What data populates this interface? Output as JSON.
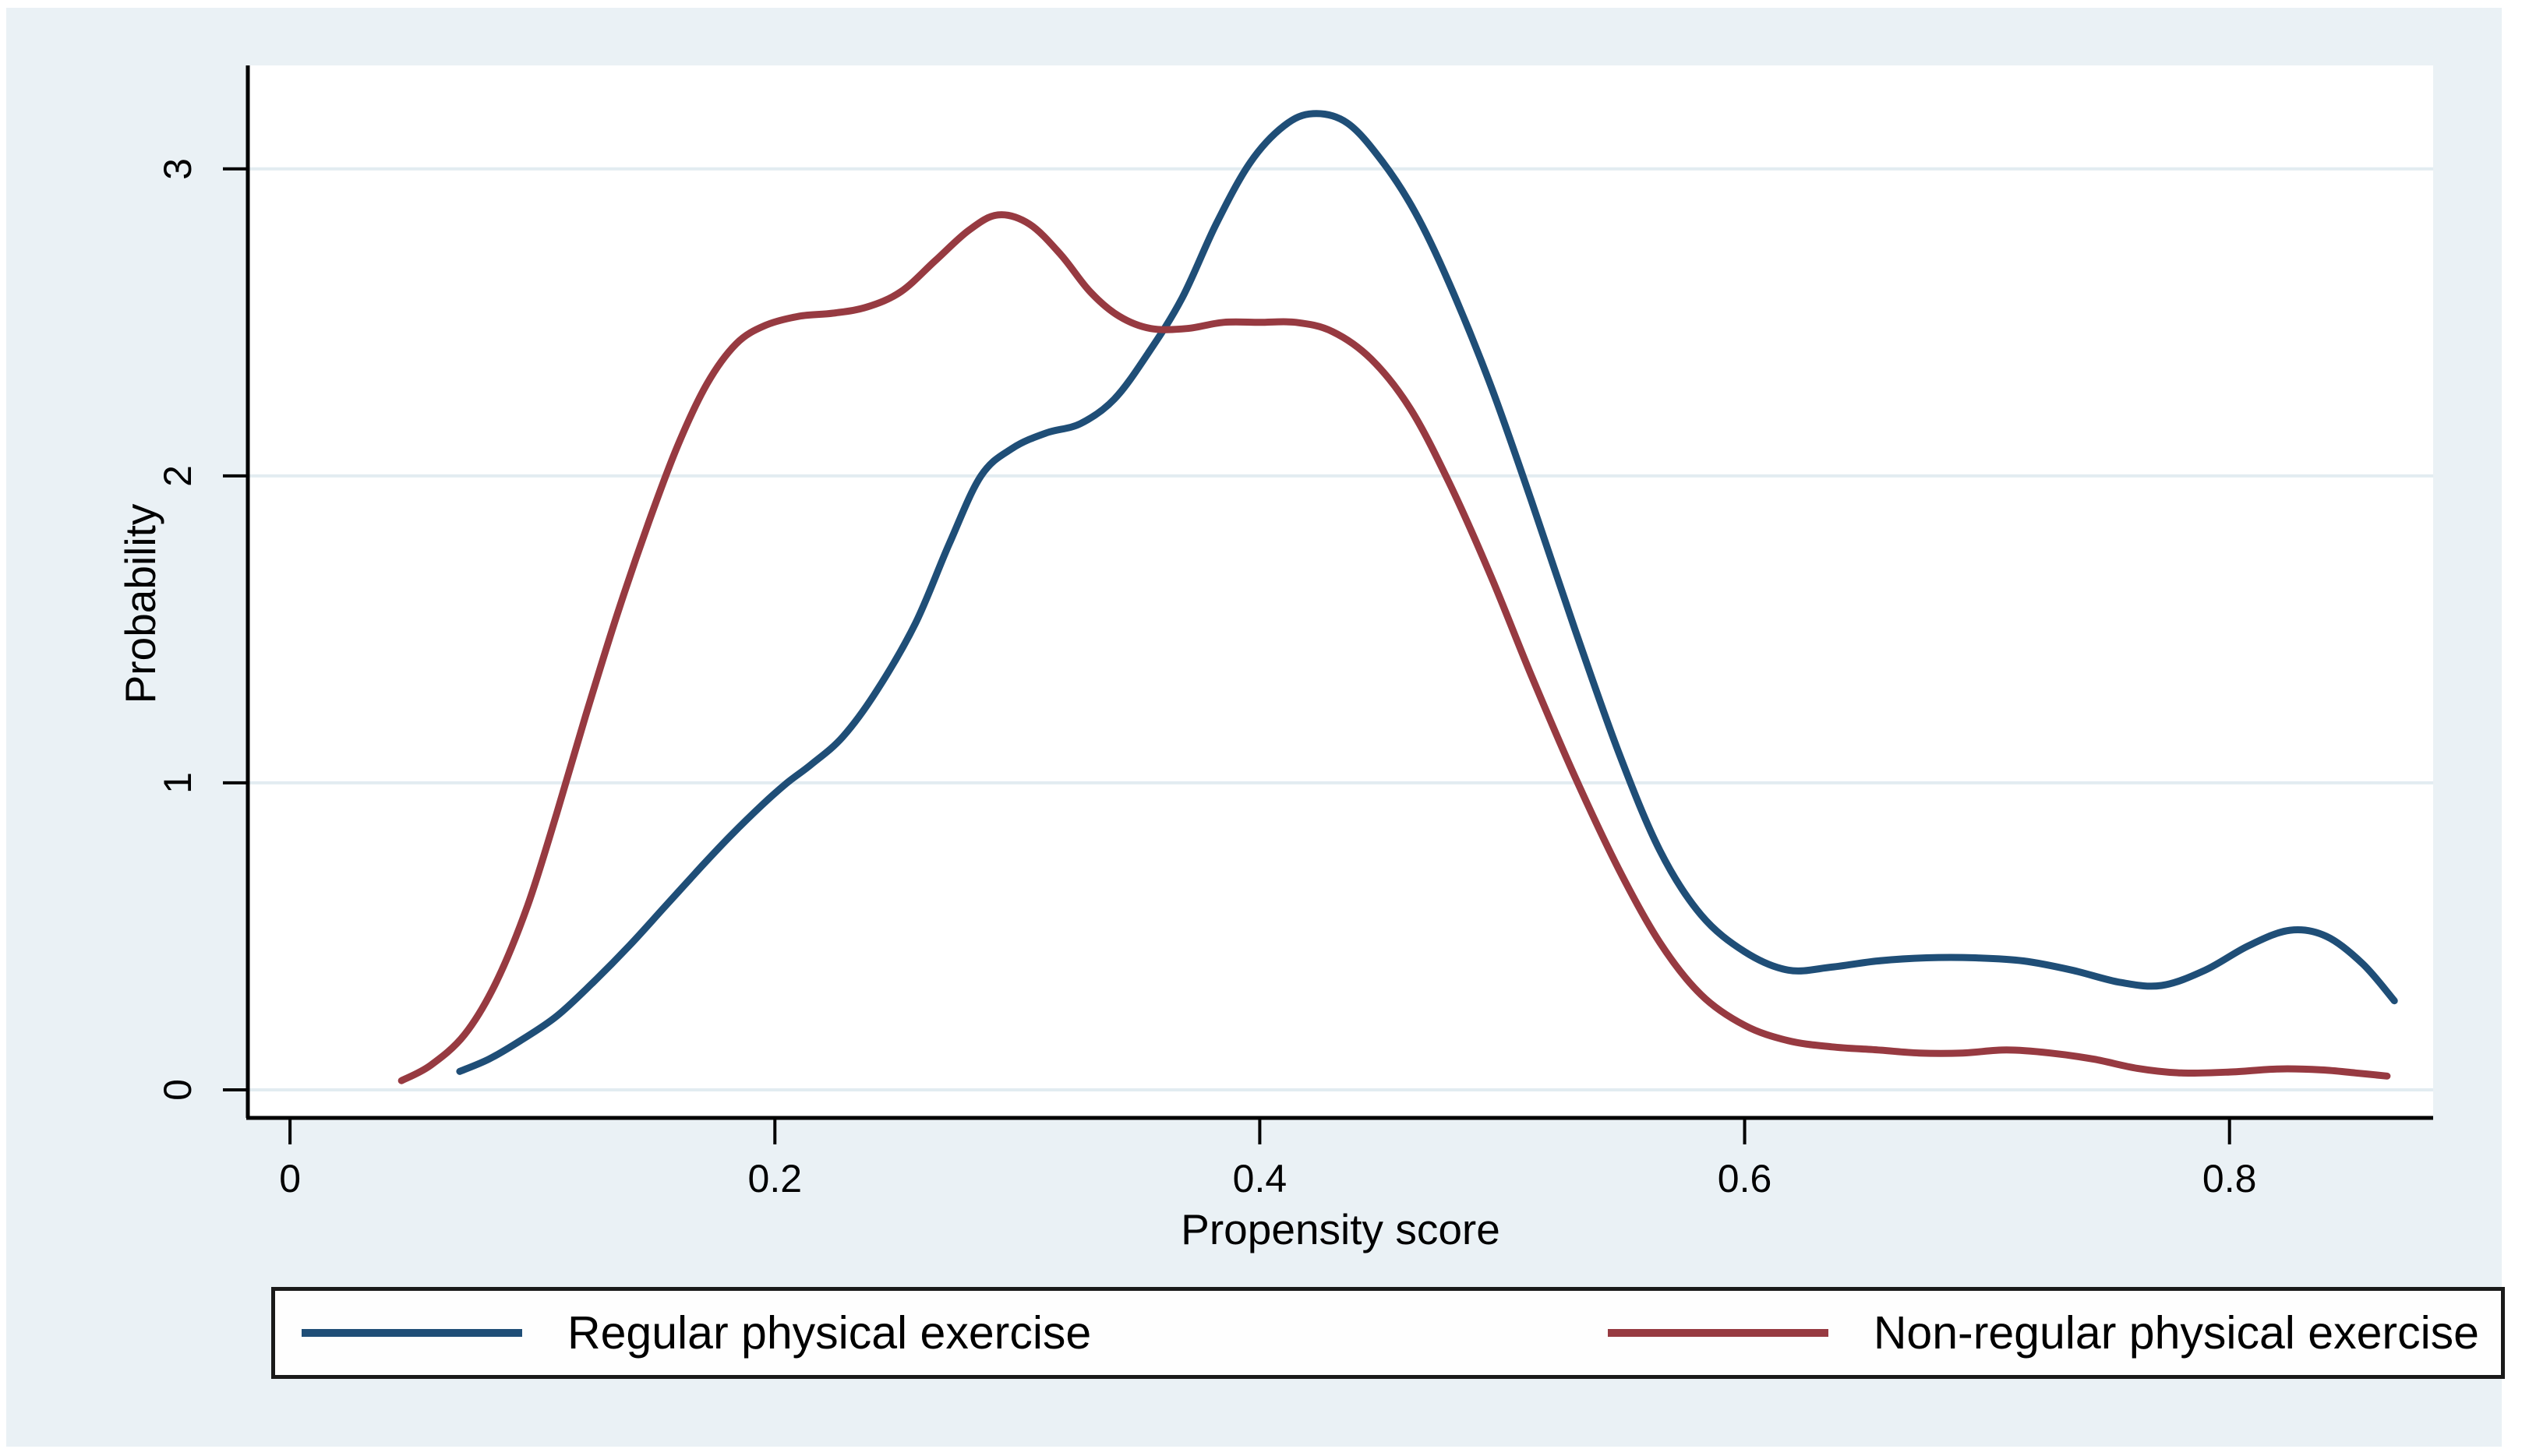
{
  "figure": {
    "background_color": "#eaf1f5",
    "plot_background_color": "#ffffff",
    "grid_color": "#e2ecf1",
    "axis_color": "#000000",
    "legend_border_color": "#1a1a1a",
    "legend_background_color": "#fefefe"
  },
  "chart_data": {
    "type": "line",
    "title": "",
    "xlabel": "Propensity score",
    "ylabel": "Probability",
    "xlim": [
      -0.0174,
      0.884
    ],
    "ylim": [
      -0.0914,
      3.337
    ],
    "x_ticks": [
      0,
      0.2,
      0.4,
      0.6,
      0.8
    ],
    "x_tick_labels": [
      "0",
      "0.2",
      "0.4",
      "0.6",
      "0.8"
    ],
    "y_ticks": [
      0,
      1,
      2,
      3
    ],
    "y_tick_labels": [
      "0",
      "1",
      "2",
      "3"
    ],
    "grid": "horizontal gridlines at y ticks",
    "legend_position": "bottom",
    "series": [
      {
        "name": "Regular physical exercise",
        "color": "#1f4e77",
        "points": [
          [
            0.07,
            0.06
          ],
          [
            0.082,
            0.1
          ],
          [
            0.095,
            0.16
          ],
          [
            0.11,
            0.24
          ],
          [
            0.125,
            0.35
          ],
          [
            0.14,
            0.47
          ],
          [
            0.155,
            0.6
          ],
          [
            0.17,
            0.73
          ],
          [
            0.182,
            0.83
          ],
          [
            0.195,
            0.93
          ],
          [
            0.205,
            1.0
          ],
          [
            0.215,
            1.06
          ],
          [
            0.228,
            1.15
          ],
          [
            0.242,
            1.3
          ],
          [
            0.258,
            1.52
          ],
          [
            0.272,
            1.78
          ],
          [
            0.285,
            2.0
          ],
          [
            0.298,
            2.09
          ],
          [
            0.312,
            2.14
          ],
          [
            0.326,
            2.17
          ],
          [
            0.34,
            2.25
          ],
          [
            0.354,
            2.4
          ],
          [
            0.368,
            2.58
          ],
          [
            0.382,
            2.82
          ],
          [
            0.396,
            3.02
          ],
          [
            0.41,
            3.14
          ],
          [
            0.422,
            3.18
          ],
          [
            0.436,
            3.15
          ],
          [
            0.45,
            3.03
          ],
          [
            0.464,
            2.86
          ],
          [
            0.478,
            2.63
          ],
          [
            0.495,
            2.3
          ],
          [
            0.512,
            1.92
          ],
          [
            0.53,
            1.5
          ],
          [
            0.548,
            1.1
          ],
          [
            0.565,
            0.78
          ],
          [
            0.582,
            0.57
          ],
          [
            0.6,
            0.45
          ],
          [
            0.618,
            0.39
          ],
          [
            0.636,
            0.4
          ],
          [
            0.655,
            0.42
          ],
          [
            0.675,
            0.43
          ],
          [
            0.695,
            0.43
          ],
          [
            0.715,
            0.42
          ],
          [
            0.735,
            0.39
          ],
          [
            0.755,
            0.35
          ],
          [
            0.772,
            0.34
          ],
          [
            0.79,
            0.39
          ],
          [
            0.808,
            0.47
          ],
          [
            0.825,
            0.52
          ],
          [
            0.84,
            0.5
          ],
          [
            0.855,
            0.41
          ],
          [
            0.868,
            0.29
          ]
        ]
      },
      {
        "name": "Non-regular physical exercise",
        "color": "#973a41",
        "points": [
          [
            0.046,
            0.03
          ],
          [
            0.058,
            0.08
          ],
          [
            0.072,
            0.18
          ],
          [
            0.085,
            0.35
          ],
          [
            0.098,
            0.6
          ],
          [
            0.11,
            0.9
          ],
          [
            0.122,
            1.22
          ],
          [
            0.135,
            1.55
          ],
          [
            0.148,
            1.85
          ],
          [
            0.16,
            2.1
          ],
          [
            0.172,
            2.3
          ],
          [
            0.184,
            2.43
          ],
          [
            0.196,
            2.49
          ],
          [
            0.21,
            2.52
          ],
          [
            0.224,
            2.53
          ],
          [
            0.238,
            2.55
          ],
          [
            0.252,
            2.6
          ],
          [
            0.266,
            2.7
          ],
          [
            0.28,
            2.8
          ],
          [
            0.292,
            2.85
          ],
          [
            0.305,
            2.82
          ],
          [
            0.318,
            2.72
          ],
          [
            0.33,
            2.6
          ],
          [
            0.342,
            2.52
          ],
          [
            0.355,
            2.48
          ],
          [
            0.37,
            2.48
          ],
          [
            0.385,
            2.5
          ],
          [
            0.4,
            2.5
          ],
          [
            0.415,
            2.5
          ],
          [
            0.43,
            2.47
          ],
          [
            0.446,
            2.38
          ],
          [
            0.462,
            2.22
          ],
          [
            0.478,
            1.98
          ],
          [
            0.495,
            1.68
          ],
          [
            0.512,
            1.35
          ],
          [
            0.53,
            1.02
          ],
          [
            0.548,
            0.72
          ],
          [
            0.565,
            0.48
          ],
          [
            0.582,
            0.31
          ],
          [
            0.6,
            0.21
          ],
          [
            0.618,
            0.16
          ],
          [
            0.636,
            0.14
          ],
          [
            0.655,
            0.13
          ],
          [
            0.672,
            0.12
          ],
          [
            0.69,
            0.12
          ],
          [
            0.708,
            0.13
          ],
          [
            0.726,
            0.12
          ],
          [
            0.744,
            0.1
          ],
          [
            0.762,
            0.07
          ],
          [
            0.78,
            0.055
          ],
          [
            0.8,
            0.058
          ],
          [
            0.82,
            0.068
          ],
          [
            0.838,
            0.065
          ],
          [
            0.852,
            0.055
          ],
          [
            0.865,
            0.045
          ]
        ]
      }
    ]
  }
}
